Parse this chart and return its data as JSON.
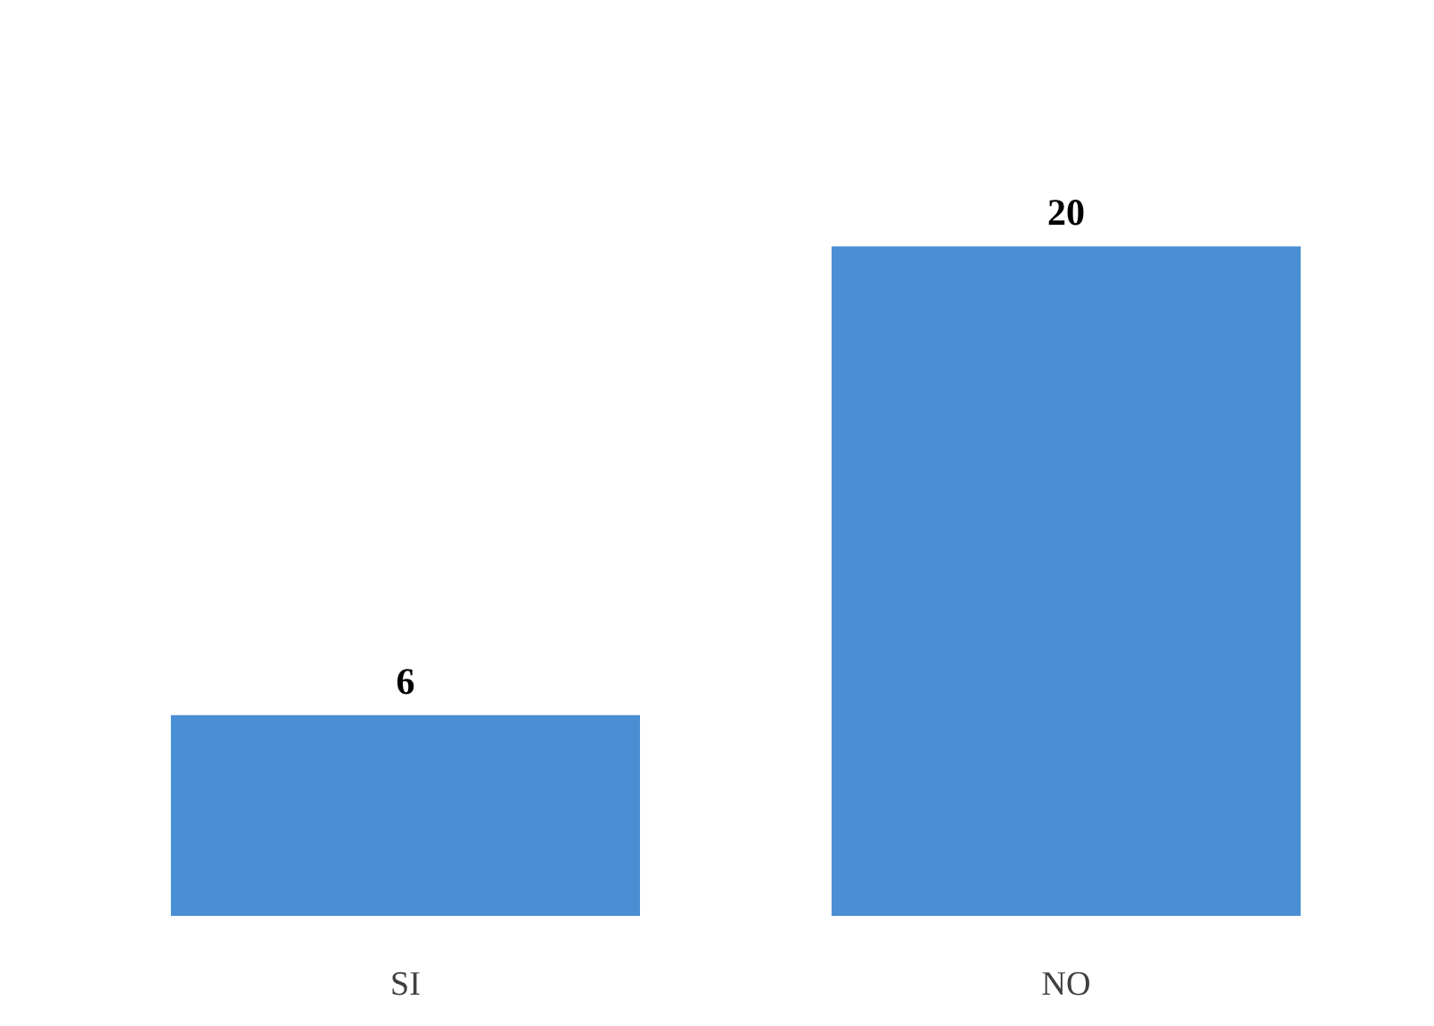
{
  "chart_data": {
    "type": "bar",
    "categories": [
      "SI",
      "NO"
    ],
    "values": [
      6,
      20
    ],
    "color": "#4a8ed4",
    "tick_labels": "x",
    "data_labels": true
  }
}
